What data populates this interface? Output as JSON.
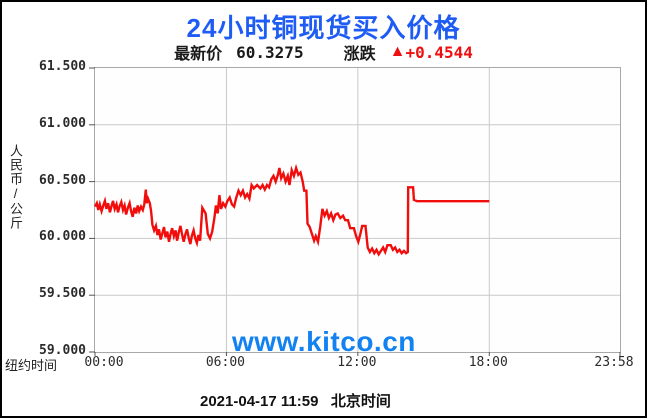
{
  "window": {
    "background": "#ffffff",
    "border_color": "#000000"
  },
  "header": {
    "title": "24小时铜现货买入价格",
    "title_color": "#1e5cf3",
    "latest_label": "最新价",
    "latest_value": "60.3275",
    "change_label": "涨跌",
    "change_arrow": "▲",
    "change_value": "+0.4544",
    "change_color": "#ee1010",
    "text_color": "#1a1a1a"
  },
  "watermark": {
    "text": "www.kitco.cn",
    "color": "#1282f0"
  },
  "footer": {
    "caption": "2021-04-17 11:59   北京时间"
  },
  "axes": {
    "y_title": "人民币/公斤",
    "x_title": "纽约时间",
    "y_ticks": [
      "61.500",
      "61.000",
      "60.500",
      "60.000",
      "59.500",
      "59.000"
    ],
    "x_ticks": [
      "00:00",
      "06:00",
      "12:00",
      "18:00",
      "23:58"
    ],
    "grid_color": "#c9c9c9",
    "tick_color": "#555555"
  },
  "chart_data": {
    "type": "line",
    "title": "24小时铜现货买入价格",
    "xlabel": "纽约时间",
    "ylabel": "人民币/公斤",
    "legend": false,
    "grid": true,
    "xlim": [
      0,
      23.967
    ],
    "ylim": [
      59.0,
      61.5
    ],
    "y_gridlines": [
      61.5,
      61.0,
      60.5,
      60.0,
      59.5,
      59.0
    ],
    "x_gridlines_hours": [
      0,
      6,
      12,
      18,
      23.967
    ],
    "line_color": "#f20d0d",
    "line_width": 2.4,
    "series": [
      {
        "name": "铜现货买入价",
        "points": [
          [
            0.0,
            60.28
          ],
          [
            0.08,
            60.31
          ],
          [
            0.15,
            60.25
          ],
          [
            0.22,
            60.3
          ],
          [
            0.3,
            60.24
          ],
          [
            0.38,
            60.29
          ],
          [
            0.45,
            60.33
          ],
          [
            0.52,
            60.26
          ],
          [
            0.6,
            60.31
          ],
          [
            0.68,
            60.23
          ],
          [
            0.75,
            60.28
          ],
          [
            0.82,
            60.33
          ],
          [
            0.9,
            60.26
          ],
          [
            0.98,
            60.3
          ],
          [
            1.05,
            60.23
          ],
          [
            1.12,
            60.28
          ],
          [
            1.2,
            60.32
          ],
          [
            1.28,
            60.25
          ],
          [
            1.35,
            60.29
          ],
          [
            1.42,
            60.21
          ],
          [
            1.5,
            60.27
          ],
          [
            1.58,
            60.31
          ],
          [
            1.65,
            60.24
          ],
          [
            1.72,
            60.19
          ],
          [
            1.8,
            60.27
          ],
          [
            1.88,
            60.22
          ],
          [
            1.95,
            60.29
          ],
          [
            2.02,
            60.24
          ],
          [
            2.1,
            60.28
          ],
          [
            2.18,
            60.25
          ],
          [
            2.25,
            60.3
          ],
          [
            2.32,
            60.43
          ],
          [
            2.36,
            60.31
          ],
          [
            2.42,
            60.35
          ],
          [
            2.5,
            60.31
          ],
          [
            2.56,
            60.24
          ],
          [
            2.62,
            60.12
          ],
          [
            2.7,
            60.07
          ],
          [
            2.78,
            60.11
          ],
          [
            2.85,
            60.03
          ],
          [
            2.92,
            60.08
          ],
          [
            3.0,
            59.99
          ],
          [
            3.08,
            60.05
          ],
          [
            3.15,
            60.1
          ],
          [
            3.22,
            60.01
          ],
          [
            3.3,
            60.06
          ],
          [
            3.38,
            59.97
          ],
          [
            3.45,
            60.04
          ],
          [
            3.52,
            60.09
          ],
          [
            3.6,
            60.02
          ],
          [
            3.68,
            60.07
          ],
          [
            3.75,
            59.98
          ],
          [
            3.82,
            60.05
          ],
          [
            3.9,
            60.11
          ],
          [
            3.98,
            60.03
          ],
          [
            4.05,
            59.97
          ],
          [
            4.12,
            60.03
          ],
          [
            4.2,
            60.08
          ],
          [
            4.28,
            60.0
          ],
          [
            4.35,
            59.95
          ],
          [
            4.42,
            60.02
          ],
          [
            4.5,
            60.07
          ],
          [
            4.58,
            60.0
          ],
          [
            4.65,
            59.96
          ],
          [
            4.72,
            60.03
          ],
          [
            4.8,
            59.98
          ],
          [
            4.9,
            60.27
          ],
          [
            5.05,
            60.22
          ],
          [
            5.15,
            60.04
          ],
          [
            5.25,
            60.0
          ],
          [
            5.35,
            60.06
          ],
          [
            5.45,
            60.18
          ],
          [
            5.52,
            60.29
          ],
          [
            5.6,
            60.22
          ],
          [
            5.68,
            60.38
          ],
          [
            5.75,
            60.26
          ],
          [
            5.85,
            60.31
          ],
          [
            5.95,
            60.28
          ],
          [
            6.05,
            60.33
          ],
          [
            6.15,
            60.36
          ],
          [
            6.25,
            60.3
          ],
          [
            6.35,
            60.28
          ],
          [
            6.45,
            60.36
          ],
          [
            6.55,
            60.42
          ],
          [
            6.65,
            60.38
          ],
          [
            6.75,
            60.42
          ],
          [
            6.85,
            60.36
          ],
          [
            6.95,
            60.39
          ],
          [
            7.05,
            60.35
          ],
          [
            7.15,
            60.47
          ],
          [
            7.25,
            60.44
          ],
          [
            7.4,
            60.47
          ],
          [
            7.55,
            60.44
          ],
          [
            7.65,
            60.47
          ],
          [
            7.75,
            60.43
          ],
          [
            7.85,
            60.47
          ],
          [
            7.95,
            60.45
          ],
          [
            8.05,
            60.52
          ],
          [
            8.15,
            60.55
          ],
          [
            8.25,
            60.5
          ],
          [
            8.35,
            60.56
          ],
          [
            8.42,
            60.62
          ],
          [
            8.5,
            60.53
          ],
          [
            8.6,
            60.57
          ],
          [
            8.7,
            60.5
          ],
          [
            8.8,
            60.55
          ],
          [
            8.88,
            60.47
          ],
          [
            8.98,
            60.6
          ],
          [
            9.08,
            60.55
          ],
          [
            9.18,
            60.62
          ],
          [
            9.28,
            60.56
          ],
          [
            9.38,
            60.58
          ],
          [
            9.48,
            60.5
          ],
          [
            9.55,
            60.42
          ],
          [
            9.65,
            60.42
          ],
          [
            9.7,
            60.13
          ],
          [
            9.8,
            60.1
          ],
          [
            9.9,
            60.04
          ],
          [
            10.0,
            59.98
          ],
          [
            10.08,
            60.02
          ],
          [
            10.18,
            59.97
          ],
          [
            10.28,
            60.1
          ],
          [
            10.38,
            60.26
          ],
          [
            10.48,
            60.2
          ],
          [
            10.58,
            60.24
          ],
          [
            10.68,
            60.18
          ],
          [
            10.78,
            60.22
          ],
          [
            10.88,
            60.16
          ],
          [
            10.98,
            60.21
          ],
          [
            11.08,
            60.22
          ],
          [
            11.2,
            60.18
          ],
          [
            11.32,
            60.2
          ],
          [
            11.42,
            60.16
          ],
          [
            11.55,
            60.16
          ],
          [
            11.65,
            60.09
          ],
          [
            11.82,
            60.09
          ],
          [
            11.92,
            60.02
          ],
          [
            12.02,
            59.97
          ],
          [
            12.1,
            60.03
          ],
          [
            12.2,
            60.11
          ],
          [
            12.35,
            60.11
          ],
          [
            12.45,
            59.92
          ],
          [
            12.55,
            59.88
          ],
          [
            12.65,
            59.91
          ],
          [
            12.75,
            59.87
          ],
          [
            12.85,
            59.9
          ],
          [
            12.95,
            59.86
          ],
          [
            13.05,
            59.89
          ],
          [
            13.15,
            59.92
          ],
          [
            13.25,
            59.88
          ],
          [
            13.35,
            59.94
          ],
          [
            13.5,
            59.94
          ],
          [
            13.6,
            59.9
          ],
          [
            13.7,
            59.92
          ],
          [
            13.8,
            59.88
          ],
          [
            13.9,
            59.9
          ],
          [
            14.0,
            59.87
          ],
          [
            14.1,
            59.89
          ],
          [
            14.2,
            59.87
          ],
          [
            14.28,
            59.88
          ],
          [
            14.3,
            60.45
          ],
          [
            14.52,
            60.45
          ],
          [
            14.56,
            60.34
          ],
          [
            14.7,
            60.3275
          ],
          [
            15.5,
            60.3275
          ],
          [
            16.5,
            60.3275
          ],
          [
            17.5,
            60.3275
          ],
          [
            18.0,
            60.3275
          ]
        ]
      }
    ]
  }
}
